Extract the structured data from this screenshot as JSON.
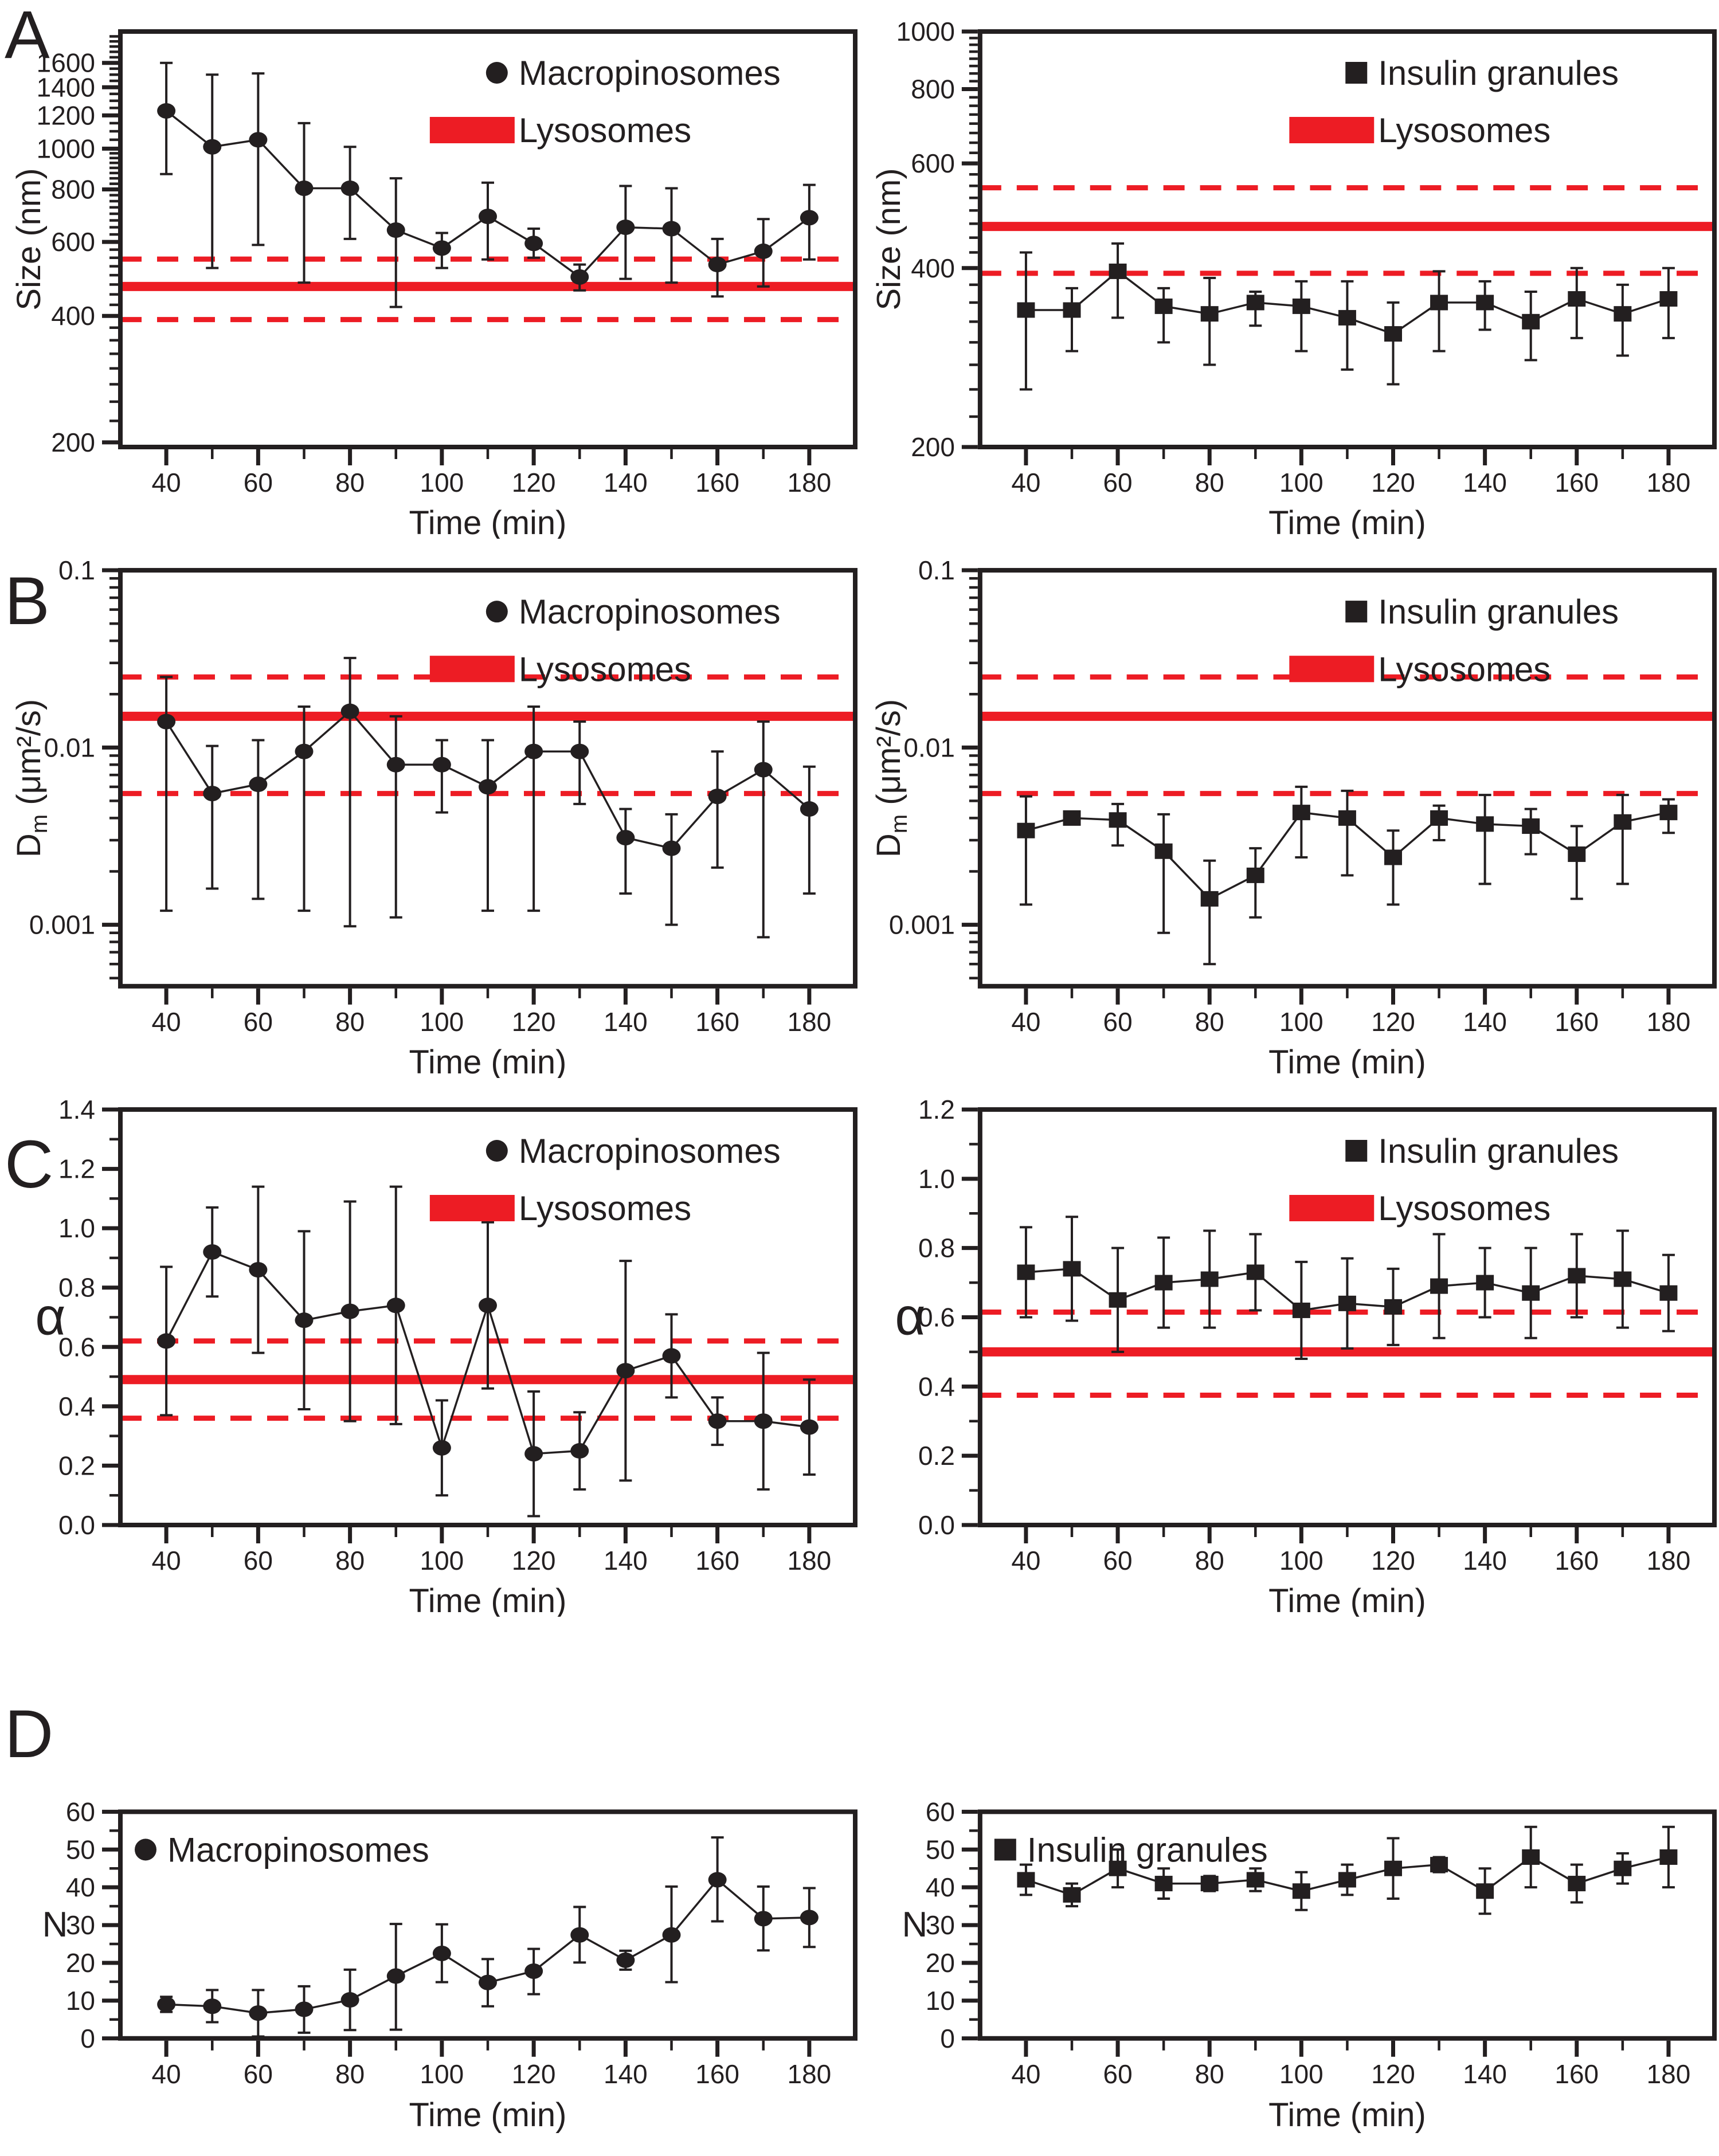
{
  "figure": {
    "panel_letters": [
      "A",
      "B",
      "C",
      "D"
    ],
    "colors": {
      "ink": "#231f20",
      "lysosome_red": "#ed1c24"
    },
    "series_labels": {
      "left": "Macropinosomes",
      "right": "Insulin granules",
      "reference": "Lysosomes"
    }
  },
  "chart_data": [
    {
      "panel": "A",
      "position": "left",
      "type": "scatter",
      "xlabel": "Time (min)",
      "ylabel": "Size (nm)",
      "ylabel_style": "rotated",
      "x_range": [
        30,
        190
      ],
      "x_ticks": [
        40,
        50,
        60,
        70,
        80,
        90,
        100,
        110,
        120,
        130,
        140,
        150,
        160,
        170,
        180
      ],
      "x_label_every": 20,
      "y_scale": "log",
      "y_range": [
        195,
        1900
      ],
      "y_ticks": [
        200,
        400,
        600,
        800,
        1000,
        1200,
        1400,
        1600
      ],
      "y_tick_labels": [
        "200",
        "400",
        "600",
        "800",
        "1000",
        "1200",
        "1400",
        "1600"
      ],
      "y_minor_rule": {
        "type": "steps",
        "segments": [
          {
            "from": 225,
            "to": 975,
            "step": 25
          },
          {
            "from": 1050,
            "to": 1850,
            "step": 50
          }
        ]
      },
      "series": {
        "name": "Macropinosomes",
        "marker": "circle",
        "x": [
          40,
          50,
          60,
          70,
          80,
          90,
          100,
          110,
          120,
          130,
          140,
          150,
          160,
          170,
          180
        ],
        "y": [
          1230,
          1010,
          1050,
          805,
          805,
          640,
          580,
          690,
          595,
          495,
          650,
          645,
          530,
          570,
          685
        ],
        "y_err_lo": [
          870,
          520,
          590,
          480,
          610,
          420,
          520,
          545,
          550,
          460,
          490,
          480,
          445,
          470,
          545
        ],
        "y_err_hi": [
          1600,
          1500,
          1510,
          1150,
          1010,
          850,
          630,
          830,
          645,
          530,
          815,
          805,
          610,
          680,
          820
        ]
      },
      "lysosomes": {
        "label": "Lysosomes",
        "mean": 470,
        "upper": 546,
        "lower": 392
      },
      "legend": {
        "position": "top-right",
        "entries": [
          "Macropinosomes",
          "Lysosomes"
        ]
      }
    },
    {
      "panel": "A",
      "position": "right",
      "type": "scatter",
      "xlabel": "Time (min)",
      "ylabel": "Size (nm)",
      "ylabel_style": "rotated",
      "x_range": [
        30,
        190
      ],
      "x_ticks": [
        40,
        50,
        60,
        70,
        80,
        90,
        100,
        110,
        120,
        130,
        140,
        150,
        160,
        170,
        180
      ],
      "x_label_every": 20,
      "y_scale": "log",
      "y_range": [
        200,
        1000
      ],
      "y_ticks": [
        200,
        400,
        600,
        800,
        1000
      ],
      "y_tick_labels": [
        "200",
        "400",
        "600",
        "800",
        "1000"
      ],
      "y_minor_rule": {
        "type": "steps",
        "segments": [
          {
            "from": 225,
            "to": 975,
            "step": 25
          }
        ]
      },
      "series": {
        "name": "Insulin granules",
        "marker": "square",
        "x": [
          40,
          50,
          60,
          70,
          80,
          90,
          100,
          110,
          120,
          130,
          140,
          150,
          160,
          170,
          180
        ],
        "y": [
          340,
          340,
          395,
          345,
          335,
          350,
          345,
          330,
          310,
          350,
          350,
          325,
          355,
          335,
          355
        ],
        "y_err_lo": [
          250,
          290,
          330,
          300,
          275,
          320,
          290,
          270,
          255,
          290,
          315,
          280,
          305,
          285,
          305
        ],
        "y_err_hi": [
          425,
          370,
          440,
          370,
          385,
          365,
          380,
          380,
          350,
          395,
          380,
          365,
          400,
          375,
          400
        ]
      },
      "lysosomes": {
        "label": "Lysosomes",
        "mean": 470,
        "upper": 546,
        "lower": 392
      },
      "legend": {
        "position": "top-right",
        "entries": [
          "Insulin granules",
          "Lysosomes"
        ]
      }
    },
    {
      "panel": "B",
      "position": "left",
      "type": "scatter",
      "xlabel": "Time (min)",
      "ylabel": "Dm (um2/s)",
      "ylabel_style": "rotated-dm",
      "ylabel_parts": {
        "pre": "D",
        "sub": "m",
        "post": " (μm²/s)"
      },
      "x_range": [
        30,
        190
      ],
      "x_ticks": [
        40,
        50,
        60,
        70,
        80,
        90,
        100,
        110,
        120,
        130,
        140,
        150,
        160,
        170,
        180
      ],
      "x_label_every": 20,
      "y_scale": "log",
      "y_range": [
        0.00045,
        0.1
      ],
      "y_ticks": [
        0.001,
        0.01,
        0.1
      ],
      "y_tick_labels": [
        "0.001",
        "0.01",
        "0.1"
      ],
      "y_minor_rule": {
        "type": "log"
      },
      "series": {
        "name": "Macropinosomes",
        "marker": "circle",
        "x": [
          40,
          50,
          60,
          70,
          80,
          90,
          100,
          110,
          120,
          130,
          140,
          150,
          160,
          170,
          180
        ],
        "y": [
          0.014,
          0.0055,
          0.0062,
          0.0095,
          0.016,
          0.008,
          0.008,
          0.006,
          0.0095,
          0.0095,
          0.0031,
          0.0027,
          0.0053,
          0.0075,
          0.0045
        ],
        "y_err_lo": [
          0.0012,
          0.0016,
          0.0014,
          0.0012,
          0.00098,
          0.0011,
          0.0043,
          0.0012,
          0.0012,
          0.0048,
          0.0015,
          0.001,
          0.0021,
          0.00085,
          0.0015
        ],
        "y_err_hi": [
          0.025,
          0.0102,
          0.011,
          0.017,
          0.032,
          0.015,
          0.011,
          0.011,
          0.017,
          0.014,
          0.0045,
          0.0042,
          0.0095,
          0.014,
          0.0078
        ]
      },
      "lysosomes": {
        "label": "Lysosomes",
        "mean": 0.015,
        "upper": 0.025,
        "lower": 0.0055
      },
      "legend": {
        "position": "top-right",
        "entries": [
          "Macropinosomes",
          "Lysosomes"
        ]
      }
    },
    {
      "panel": "B",
      "position": "right",
      "type": "scatter",
      "xlabel": "Time (min)",
      "ylabel": "Dm (um2/s)",
      "ylabel_style": "rotated-dm",
      "ylabel_parts": {
        "pre": "D",
        "sub": "m",
        "post": " (μm²/s)"
      },
      "x_range": [
        30,
        190
      ],
      "x_ticks": [
        40,
        50,
        60,
        70,
        80,
        90,
        100,
        110,
        120,
        130,
        140,
        150,
        160,
        170,
        180
      ],
      "x_label_every": 20,
      "y_scale": "log",
      "y_range": [
        0.00045,
        0.1
      ],
      "y_ticks": [
        0.001,
        0.01,
        0.1
      ],
      "y_tick_labels": [
        "0.001",
        "0.01",
        "0.1"
      ],
      "y_minor_rule": {
        "type": "log"
      },
      "series": {
        "name": "Insulin granules",
        "marker": "square",
        "x": [
          40,
          50,
          60,
          70,
          80,
          90,
          100,
          110,
          120,
          130,
          140,
          150,
          160,
          170,
          180
        ],
        "y": [
          0.0034,
          0.004,
          0.0039,
          0.0026,
          0.0014,
          0.0019,
          0.0043,
          0.004,
          0.0024,
          0.004,
          0.0037,
          0.0036,
          0.0025,
          0.0038,
          0.0043
        ],
        "y_err_lo": [
          0.0013,
          0.0037,
          0.0028,
          0.0009,
          0.0006,
          0.0011,
          0.0024,
          0.0019,
          0.0013,
          0.003,
          0.0017,
          0.0025,
          0.0014,
          0.0017,
          0.0033
        ],
        "y_err_hi": [
          0.0053,
          0.0043,
          0.0048,
          0.0042,
          0.0023,
          0.0027,
          0.006,
          0.0057,
          0.0034,
          0.0047,
          0.0054,
          0.0045,
          0.0036,
          0.0054,
          0.0051
        ]
      },
      "lysosomes": {
        "label": "Lysosomes",
        "mean": 0.015,
        "upper": 0.025,
        "lower": 0.0055
      },
      "legend": {
        "position": "top-right",
        "entries": [
          "Insulin granules",
          "Lysosomes"
        ]
      }
    },
    {
      "panel": "C",
      "position": "left",
      "type": "scatter",
      "xlabel": "Time (min)",
      "ylabel": "α",
      "ylabel_style": "plain-large",
      "x_range": [
        30,
        190
      ],
      "x_ticks": [
        40,
        50,
        60,
        70,
        80,
        90,
        100,
        110,
        120,
        130,
        140,
        150,
        160,
        170,
        180
      ],
      "x_label_every": 20,
      "y_scale": "linear",
      "y_range": [
        0,
        1.4
      ],
      "y_ticks": [
        0,
        0.2,
        0.4,
        0.6,
        0.8,
        1.0,
        1.2,
        1.4
      ],
      "y_tick_labels": [
        "0.0",
        "0.2",
        "0.4",
        "0.6",
        "0.8",
        "1.0",
        "1.2",
        "1.4"
      ],
      "y_minor_rule": {
        "type": "steps",
        "segments": [
          {
            "from": 0.1,
            "to": 1.3,
            "step": 0.2
          }
        ]
      },
      "series": {
        "name": "Macropinosomes",
        "marker": "circle",
        "x": [
          40,
          50,
          60,
          70,
          80,
          90,
          100,
          110,
          120,
          130,
          140,
          150,
          160,
          170,
          180
        ],
        "y": [
          0.62,
          0.92,
          0.86,
          0.69,
          0.72,
          0.74,
          0.26,
          0.74,
          0.24,
          0.25,
          0.52,
          0.57,
          0.35,
          0.35,
          0.33
        ],
        "y_err_lo": [
          0.37,
          0.77,
          0.58,
          0.39,
          0.35,
          0.34,
          0.1,
          0.46,
          0.03,
          0.12,
          0.15,
          0.43,
          0.27,
          0.12,
          0.17
        ],
        "y_err_hi": [
          0.87,
          1.07,
          1.14,
          0.99,
          1.09,
          1.14,
          0.42,
          1.02,
          0.45,
          0.38,
          0.89,
          0.71,
          0.43,
          0.58,
          0.49
        ]
      },
      "lysosomes": {
        "label": "Lysosomes",
        "mean": 0.49,
        "upper": 0.62,
        "lower": 0.36
      },
      "legend": {
        "position": "top-right",
        "entries": [
          "Macropinosomes",
          "Lysosomes"
        ]
      }
    },
    {
      "panel": "C",
      "position": "right",
      "type": "scatter",
      "xlabel": "Time (min)",
      "ylabel": "α",
      "ylabel_style": "plain-large",
      "x_range": [
        30,
        190
      ],
      "x_ticks": [
        40,
        50,
        60,
        70,
        80,
        90,
        100,
        110,
        120,
        130,
        140,
        150,
        160,
        170,
        180
      ],
      "x_label_every": 20,
      "y_scale": "linear",
      "y_range": [
        0,
        1.2
      ],
      "y_ticks": [
        0,
        0.2,
        0.4,
        0.6,
        0.8,
        1.0,
        1.2
      ],
      "y_tick_labels": [
        "0.0",
        "0.2",
        "0.4",
        "0.6",
        "0.8",
        "1.0",
        "1.2"
      ],
      "y_minor_rule": {
        "type": "steps",
        "segments": [
          {
            "from": 0.1,
            "to": 1.1,
            "step": 0.2
          }
        ]
      },
      "series": {
        "name": "Insulin granules",
        "marker": "square",
        "x": [
          40,
          50,
          60,
          70,
          80,
          90,
          100,
          110,
          120,
          130,
          140,
          150,
          160,
          170,
          180
        ],
        "y": [
          0.73,
          0.74,
          0.65,
          0.7,
          0.71,
          0.73,
          0.62,
          0.64,
          0.63,
          0.69,
          0.7,
          0.67,
          0.72,
          0.71,
          0.67
        ],
        "y_err_lo": [
          0.6,
          0.59,
          0.5,
          0.57,
          0.57,
          0.62,
          0.48,
          0.51,
          0.52,
          0.54,
          0.6,
          0.54,
          0.6,
          0.57,
          0.56
        ],
        "y_err_hi": [
          0.86,
          0.89,
          0.8,
          0.83,
          0.85,
          0.84,
          0.76,
          0.77,
          0.74,
          0.84,
          0.8,
          0.8,
          0.84,
          0.85,
          0.78
        ]
      },
      "lysosomes": {
        "label": "Lysosomes",
        "mean": 0.5,
        "upper": 0.615,
        "lower": 0.375
      },
      "legend": {
        "position": "top-right",
        "entries": [
          "Insulin granules",
          "Lysosomes"
        ]
      }
    },
    {
      "panel": "D",
      "position": "left",
      "type": "scatter",
      "xlabel": "Time (min)",
      "ylabel": "N",
      "ylabel_style": "plain",
      "x_range": [
        30,
        190
      ],
      "x_ticks": [
        40,
        50,
        60,
        70,
        80,
        90,
        100,
        110,
        120,
        130,
        140,
        150,
        160,
        170,
        180
      ],
      "x_label_every": 20,
      "y_scale": "linear",
      "y_range": [
        0,
        60
      ],
      "y_ticks": [
        0,
        10,
        20,
        30,
        40,
        50,
        60
      ],
      "y_tick_labels": [
        "0",
        "10",
        "20",
        "30",
        "40",
        "50",
        "60"
      ],
      "y_minor_rule": {
        "type": "steps",
        "segments": [
          {
            "from": 5,
            "to": 55,
            "step": 10
          }
        ]
      },
      "series": {
        "name": "Macropinosomes",
        "marker": "circle",
        "x": [
          40,
          50,
          60,
          70,
          80,
          90,
          100,
          110,
          120,
          130,
          140,
          150,
          160,
          170,
          180
        ],
        "y": [
          9,
          8.5,
          6.7,
          7.7,
          10.2,
          16.5,
          22.5,
          14.8,
          17.8,
          27.4,
          20.7,
          27.4,
          42,
          31.7,
          32
        ],
        "y_err_lo": [
          7,
          4.3,
          0.5,
          1.5,
          2.2,
          2.3,
          14.9,
          8.5,
          11.7,
          20.1,
          18.2,
          14.9,
          31,
          23.3,
          24.2
        ],
        "y_err_hi": [
          11,
          12.8,
          12.8,
          13.8,
          18.2,
          30.3,
          30.2,
          21,
          23.7,
          34.8,
          23.2,
          40.2,
          53.2,
          40.2,
          39.8
        ]
      },
      "lysosomes": null,
      "legend": {
        "position": "top-left",
        "entries": [
          "Macropinosomes"
        ]
      }
    },
    {
      "panel": "D",
      "position": "right",
      "type": "scatter",
      "xlabel": "Time (min)",
      "ylabel": "N",
      "ylabel_style": "plain",
      "x_range": [
        30,
        190
      ],
      "x_ticks": [
        40,
        50,
        60,
        70,
        80,
        90,
        100,
        110,
        120,
        130,
        140,
        150,
        160,
        170,
        180
      ],
      "x_label_every": 20,
      "y_scale": "linear",
      "y_range": [
        0,
        60
      ],
      "y_ticks": [
        0,
        10,
        20,
        30,
        40,
        50,
        60
      ],
      "y_tick_labels": [
        "0",
        "10",
        "20",
        "30",
        "40",
        "50",
        "60"
      ],
      "y_minor_rule": {
        "type": "steps",
        "segments": [
          {
            "from": 5,
            "to": 55,
            "step": 10
          }
        ]
      },
      "series": {
        "name": "Insulin granules",
        "marker": "square",
        "x": [
          40,
          50,
          60,
          70,
          80,
          90,
          100,
          110,
          120,
          130,
          140,
          150,
          160,
          170,
          180
        ],
        "y": [
          42,
          38,
          45,
          41,
          41,
          42,
          39,
          42,
          45,
          46,
          39,
          48,
          41,
          45,
          48
        ],
        "y_err_lo": [
          38,
          35,
          40,
          37,
          39,
          39,
          34,
          38,
          37,
          44,
          33,
          40,
          36,
          41,
          40
        ],
        "y_err_hi": [
          46,
          41,
          50,
          45,
          43,
          45,
          44,
          46,
          53,
          48,
          45,
          56,
          46,
          49,
          56
        ]
      },
      "lysosomes": null,
      "legend": {
        "position": "top-left",
        "entries": [
          "Insulin granules"
        ]
      }
    }
  ]
}
